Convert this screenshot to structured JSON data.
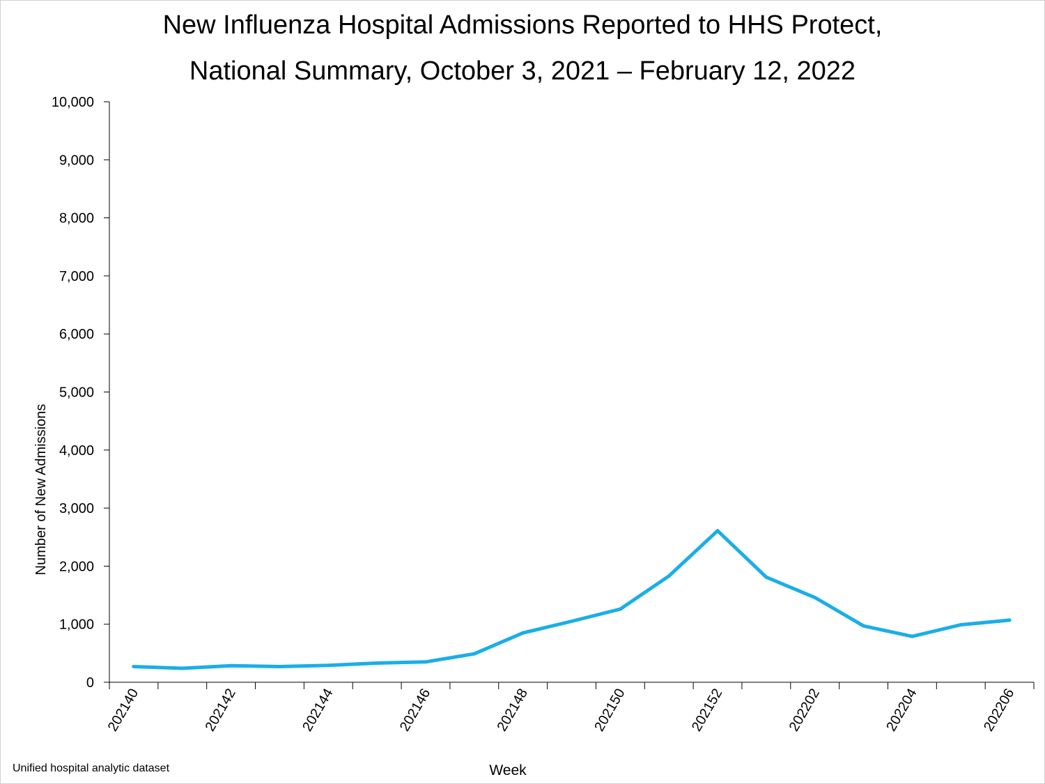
{
  "chart_data": {
    "type": "line",
    "title_line1": "New Influenza Hospital Admissions Reported to HHS Protect,",
    "title_line2": "National Summary, October 3, 2021 – February 12, 2022",
    "xlabel": "Week",
    "ylabel": "Number of New Admissions",
    "ylim": [
      0,
      10000
    ],
    "yticks": [
      0,
      1000,
      2000,
      3000,
      4000,
      5000,
      6000,
      7000,
      8000,
      9000,
      10000
    ],
    "ytick_labels": [
      "0",
      "1,000",
      "2,000",
      "3,000",
      "4,000",
      "5,000",
      "6,000",
      "7,000",
      "8,000",
      "9,000",
      "10,000"
    ],
    "weeks": [
      "202140",
      "202141",
      "202142",
      "202143",
      "202144",
      "202145",
      "202146",
      "202147",
      "202148",
      "202149",
      "202150",
      "202151",
      "202152",
      "202201",
      "202202",
      "202203",
      "202204",
      "202205",
      "202206"
    ],
    "xtick_labels": [
      "202140",
      "202142",
      "202144",
      "202146",
      "202148",
      "202150",
      "202152",
      "202202",
      "202204",
      "202206"
    ],
    "series": [
      {
        "name": "New Influenza Hospital Admissions",
        "color": "#1aaee8",
        "values": [
          270,
          240,
          285,
          270,
          290,
          330,
          350,
          490,
          850,
          1050,
          1260,
          1830,
          2610,
          1810,
          1460,
          970,
          790,
          990,
          1070
        ]
      }
    ],
    "grid": false,
    "legend": "none"
  },
  "source_note": "Unified hospital analytic dataset"
}
